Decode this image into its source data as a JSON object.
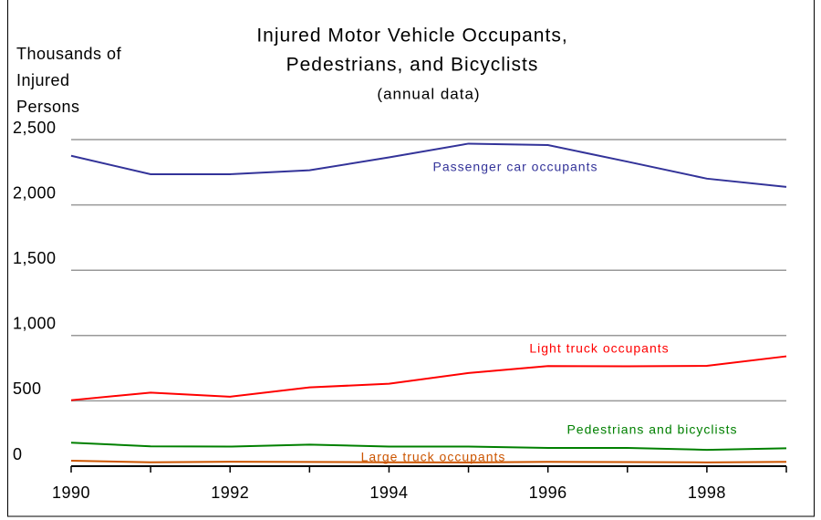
{
  "chart_data": {
    "type": "line",
    "title": [
      "Injured Motor Vehicle Occupants,",
      "Pedestrians, and Bicyclists"
    ],
    "subtitle": "(annual data)",
    "ylabel": [
      "Thousands of",
      "Injured",
      "Persons"
    ],
    "x": [
      1990,
      1991,
      1992,
      1993,
      1994,
      1995,
      1996,
      1997,
      1998,
      1999
    ],
    "xlim": [
      1990,
      1999
    ],
    "xticks": [
      1990,
      1992,
      1994,
      1996,
      1998
    ],
    "ylim": [
      0,
      2500
    ],
    "yticks": [
      0,
      500,
      {
        "value": 1000,
        "label": "1,000"
      },
      {
        "value": 1500,
        "label": "1,500"
      },
      {
        "value": 2000,
        "label": "2,000"
      },
      {
        "value": 2500,
        "label": "2,500"
      }
    ],
    "grid": true,
    "series": [
      {
        "name": "Passenger car occupants",
        "color": "#333399",
        "values": [
          2376,
          2235,
          2235,
          2265,
          2364,
          2469,
          2458,
          2331,
          2201,
          2138
        ]
      },
      {
        "name": "Light truck occupants",
        "color": "#ff0000",
        "values": [
          505,
          563,
          532,
          603,
          631,
          713,
          766,
          765,
          768,
          841
        ]
      },
      {
        "name": "Pedestrians and bicyclists",
        "color": "#008000",
        "values": [
          180,
          152,
          150,
          165,
          150,
          150,
          140,
          140,
          125,
          137
        ]
      },
      {
        "name": "Large truck occupants",
        "color": "#cc5500",
        "values": [
          42,
          30,
          34,
          32,
          30,
          29,
          33,
          31,
          29,
          33
        ]
      }
    ]
  }
}
